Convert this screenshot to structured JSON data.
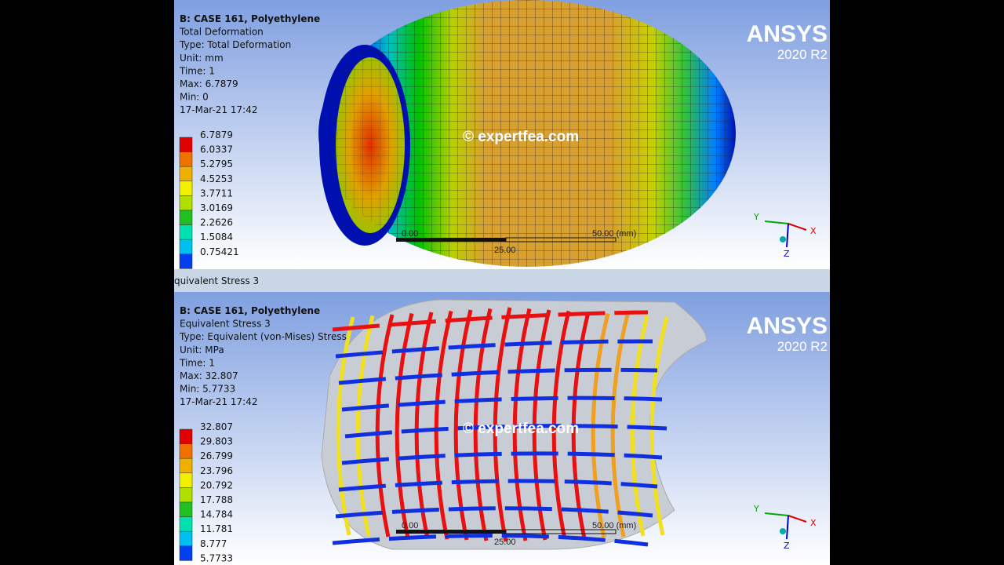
{
  "top_view": {
    "case": "B: CASE 161, Polyethylene",
    "result": "Total Deformation",
    "type": "Type: Total Deformation",
    "unit": "Unit: mm",
    "time": "Time: 1",
    "max": "Max: 6.7879",
    "min": "Min: 0",
    "date": "17-Mar-21 17:42",
    "legend": [
      "6.7879",
      "6.0337",
      "5.2795",
      "4.5253",
      "3.7711",
      "3.0169",
      "2.2626",
      "1.5084",
      "0.75421"
    ],
    "watermark": "© expertfea.com",
    "logo": "ANSYS",
    "version": "2020 R2",
    "scale": {
      "start": "0.00",
      "end": "50.00 (mm)",
      "mid": "25.00"
    },
    "triad": {
      "y": "Y",
      "x": "X",
      "z": "Z"
    }
  },
  "tab": {
    "label": "quivalent Stress 3"
  },
  "bottom_view": {
    "case": "B: CASE 161, Polyethylene",
    "result": "Equivalent Stress 3",
    "type": "Type: Equivalent (von-Mises) Stress",
    "unit": "Unit: MPa",
    "time": "Time: 1",
    "max": "Max: 32.807",
    "min": "Min: 5.7733",
    "date": "17-Mar-21 17:42",
    "legend": [
      "32.807",
      "29.803",
      "26.799",
      "23.796",
      "20.792",
      "17.788",
      "14.784",
      "11.781",
      "8.777",
      "5.7733"
    ],
    "watermark": "© expertfea.com",
    "logo": "ANSYS",
    "version": "2020 R2",
    "scale": {
      "start": "0.00",
      "end": "50.00 (mm)",
      "mid": "25.00"
    },
    "triad": {
      "y": "Y",
      "x": "X",
      "z": "Z"
    }
  }
}
